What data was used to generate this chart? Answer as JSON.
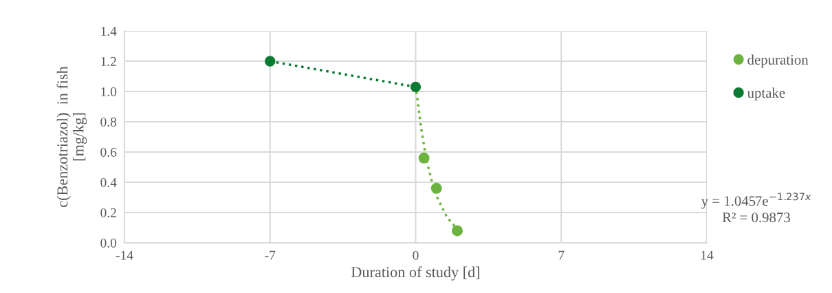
{
  "chart_data": {
    "type": "scatter",
    "xlabel": "Duration of study [d]",
    "ylabel": "c(Benzotriazol)  in fish\n[mg/kg]",
    "xlim": [
      -14,
      14
    ],
    "xticks": [
      -14,
      -7,
      0,
      7,
      14
    ],
    "ylim": [
      0,
      1.4
    ],
    "yticks": [
      {
        "value": 0,
        "label": "0.0"
      },
      {
        "value": 0.2,
        "label": "0.2"
      },
      {
        "value": 0.4,
        "label": "0.4"
      },
      {
        "value": 0.6,
        "label": "0.6"
      },
      {
        "value": 0.8,
        "label": "0.8"
      },
      {
        "value": 1.0,
        "label": "1.0"
      },
      {
        "value": 1.2,
        "label": "1.2"
      },
      {
        "value": 1.4,
        "label": "1.4"
      }
    ],
    "grid": true,
    "legend": "right",
    "marker": "circle",
    "series": [
      {
        "type": "line",
        "color": "#6db33f",
        "line_style": "dotted",
        "marker": "none",
        "x": [
          0,
          0.25,
          0.5,
          0.75,
          1,
          1.5,
          2
        ],
        "values": [
          1.04,
          0.77,
          0.56,
          0.42,
          0.31,
          0.17,
          0.09
        ]
      },
      {
        "name": "depuration",
        "color": "#6db33f",
        "x": [
          0.4,
          1,
          2
        ],
        "values": [
          0.56,
          0.36,
          0.08
        ]
      },
      {
        "name": "uptake",
        "type": "line",
        "color": "#0b7a32",
        "line_style": "dotted",
        "x": [
          -7,
          0
        ],
        "values": [
          1.2,
          1.03
        ]
      }
    ],
    "annotations": [
      "y = 1.0457e$^{−1.237x}$",
      "R² = 0.9873"
    ]
  }
}
